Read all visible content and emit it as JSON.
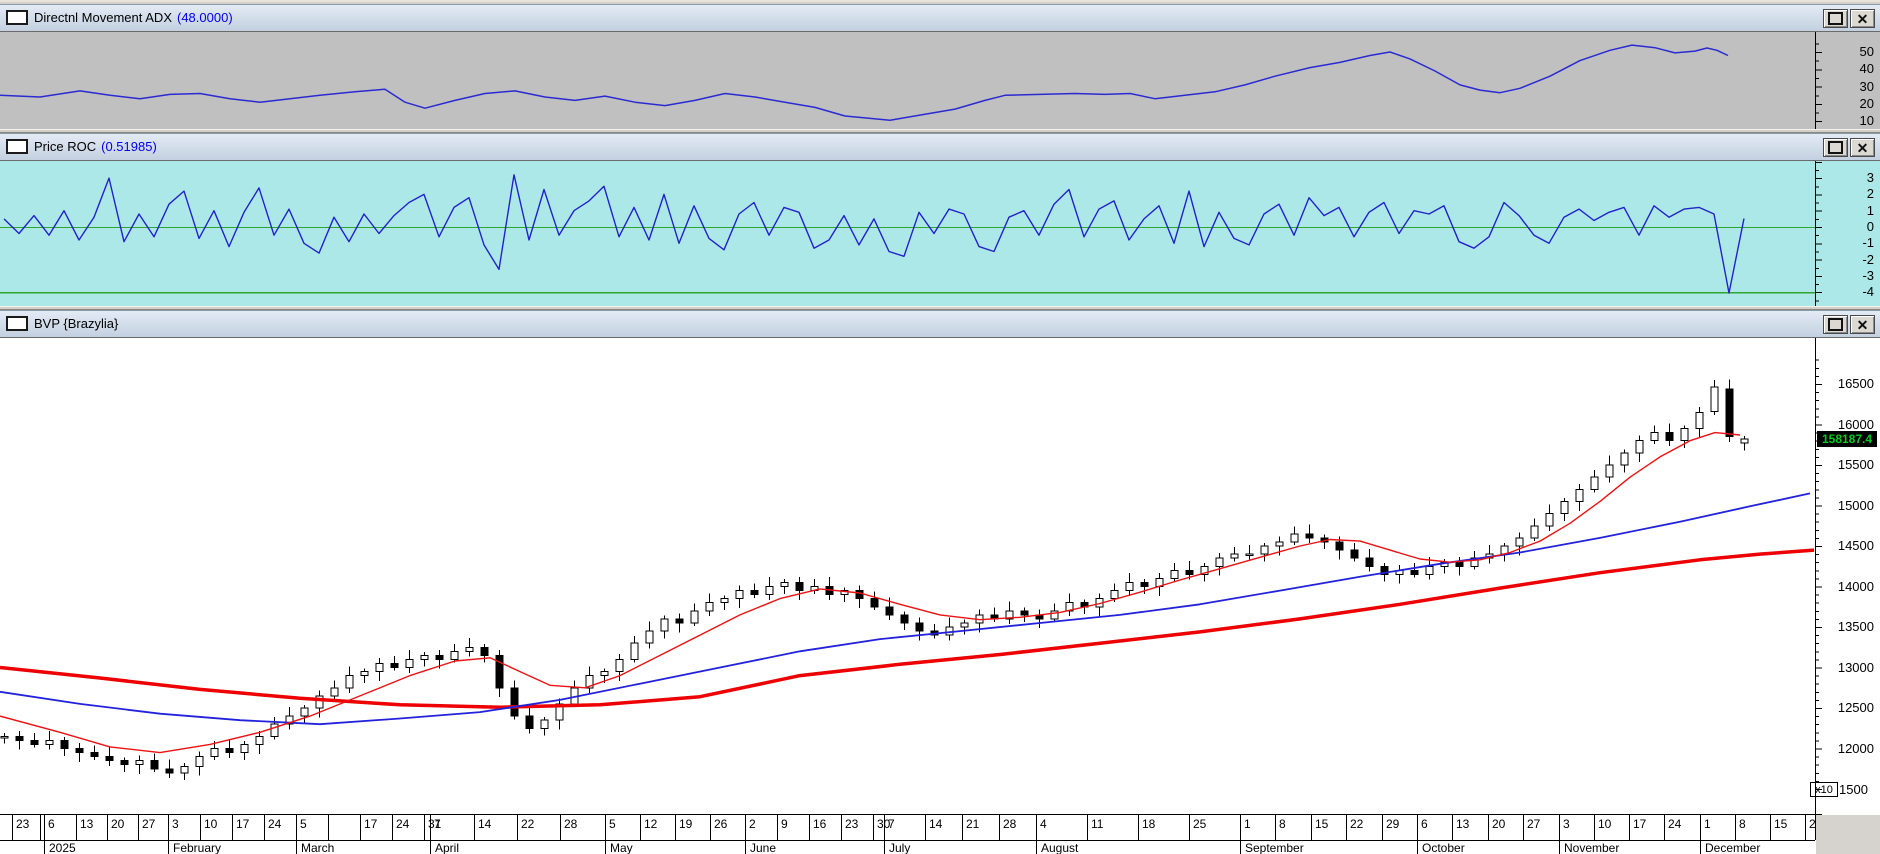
{
  "icons": {
    "close_glyph": "✕"
  },
  "panels": {
    "adx": {
      "title": "Directnl Movement ADX",
      "value": "(48.0000)"
    },
    "roc": {
      "title": "Price ROC",
      "value": "(0.51985)"
    },
    "price": {
      "title": "BVP {Brazylia}"
    }
  },
  "price_axis": {
    "badge": "158187.4",
    "multiplier": "x10",
    "bottom_label": "1500"
  },
  "chart_data": [
    {
      "id": "adx",
      "type": "line",
      "title": "Directnl Movement ADX (48.0000)",
      "line_color": "#2a2ad2",
      "bg": "#c0c0c0",
      "last_value": 48.0,
      "ylim": [
        5,
        55
      ],
      "ytick_labels": [
        50,
        40,
        30,
        20,
        10
      ],
      "legend": "none",
      "grid": false,
      "points": [
        [
          0,
          25
        ],
        [
          40,
          24
        ],
        [
          80,
          27.5
        ],
        [
          110,
          25
        ],
        [
          140,
          23
        ],
        [
          170,
          25.5
        ],
        [
          200,
          26
        ],
        [
          230,
          23
        ],
        [
          260,
          21
        ],
        [
          290,
          23
        ],
        [
          320,
          25
        ],
        [
          355,
          27
        ],
        [
          385,
          28.5
        ],
        [
          405,
          21
        ],
        [
          425,
          17.5
        ],
        [
          455,
          22
        ],
        [
          485,
          26
        ],
        [
          515,
          27.5
        ],
        [
          545,
          24
        ],
        [
          575,
          22
        ],
        [
          605,
          24.5
        ],
        [
          635,
          21
        ],
        [
          665,
          19
        ],
        [
          695,
          22
        ],
        [
          725,
          26
        ],
        [
          755,
          24
        ],
        [
          785,
          21
        ],
        [
          815,
          18
        ],
        [
          845,
          13
        ],
        [
          890,
          10.5
        ],
        [
          925,
          14
        ],
        [
          955,
          17
        ],
        [
          985,
          22
        ],
        [
          1005,
          25
        ],
        [
          1040,
          25.5
        ],
        [
          1075,
          26
        ],
        [
          1105,
          25.5
        ],
        [
          1130,
          26
        ],
        [
          1155,
          23
        ],
        [
          1185,
          25
        ],
        [
          1215,
          27
        ],
        [
          1245,
          31
        ],
        [
          1275,
          36
        ],
        [
          1310,
          41
        ],
        [
          1340,
          44
        ],
        [
          1370,
          48
        ],
        [
          1390,
          50
        ],
        [
          1410,
          46
        ],
        [
          1435,
          39
        ],
        [
          1460,
          31
        ],
        [
          1480,
          28
        ],
        [
          1500,
          26.5
        ],
        [
          1520,
          29
        ],
        [
          1550,
          36
        ],
        [
          1580,
          45
        ],
        [
          1610,
          51
        ],
        [
          1632,
          54
        ],
        [
          1655,
          52.5
        ],
        [
          1675,
          49.5
        ],
        [
          1695,
          50.5
        ],
        [
          1707,
          52.3
        ],
        [
          1717,
          51
        ],
        [
          1728,
          48
        ]
      ]
    },
    {
      "id": "roc",
      "type": "line",
      "title": "Price ROC (0.51985)",
      "line_color": "#2222cc",
      "bg": "#ace8e8",
      "hline_color": "#2fa52f",
      "hlines": [
        0,
        -4
      ],
      "last_value": 0.51985,
      "ylim": [
        -4.9,
        4.1
      ],
      "ytick_labels": [
        3,
        2,
        1,
        0,
        -1,
        -2,
        -3,
        -4
      ],
      "grid": false,
      "x_step": 15,
      "values": [
        0.5,
        -0.4,
        0.7,
        -0.5,
        1.0,
        -0.8,
        0.6,
        3.0,
        -0.9,
        0.8,
        -0.6,
        1.4,
        2.2,
        -0.7,
        1.0,
        -1.2,
        0.9,
        2.4,
        -0.5,
        1.1,
        -1.0,
        -1.6,
        0.6,
        -0.9,
        0.8,
        -0.4,
        0.7,
        1.5,
        2.0,
        -0.6,
        1.2,
        1.8,
        -1.1,
        -2.6,
        3.2,
        -0.8,
        2.3,
        -0.5,
        1.0,
        1.6,
        2.5,
        -0.6,
        1.2,
        -0.8,
        2.0,
        -1.0,
        1.3,
        -0.7,
        -1.4,
        0.8,
        1.5,
        -0.5,
        1.2,
        0.9,
        -1.3,
        -0.8,
        0.7,
        -1.1,
        0.5,
        -1.5,
        -1.8,
        0.9,
        -0.4,
        1.1,
        0.8,
        -1.2,
        -1.5,
        0.6,
        1.0,
        -0.5,
        1.4,
        2.3,
        -0.6,
        1.1,
        1.6,
        -0.8,
        0.5,
        1.3,
        -1.0,
        2.2,
        -1.2,
        0.9,
        -0.7,
        -1.1,
        0.8,
        1.4,
        -0.5,
        1.8,
        0.7,
        1.2,
        -0.6,
        0.9,
        1.5,
        -0.4,
        1.0,
        0.8,
        1.3,
        -0.9,
        -1.3,
        -0.6,
        1.5,
        0.7,
        -0.5,
        -1.0,
        0.6,
        1.1,
        0.4,
        0.9,
        1.2,
        -0.5,
        1.3,
        0.6,
        1.1,
        1.2,
        0.8,
        -4.05,
        0.52
      ]
    },
    {
      "id": "price",
      "type": "candlestick",
      "title": "BVP {Brazylia}",
      "bg": "#ffffff",
      "scale_multiplier": "x10",
      "last_price_label": "158187.4",
      "up_fill": "#ffffff",
      "down_fill": "#000000",
      "outline": "#000000",
      "ytick_labels": [
        16500,
        16000,
        15500,
        15000,
        14500,
        14000,
        13500,
        13000,
        12500,
        12000
      ],
      "bottom_tick_label": "1500",
      "ylim": [
        11450,
        16900
      ],
      "grid": false,
      "x_step": 15,
      "closes": [
        12150,
        12100,
        12050,
        12100,
        12000,
        11950,
        11900,
        11850,
        11800,
        11850,
        11750,
        11700,
        11780,
        11900,
        12000,
        11950,
        12050,
        12150,
        12300,
        12400,
        12500,
        12650,
        12750,
        12900,
        12950,
        13050,
        13000,
        13100,
        13150,
        13100,
        13200,
        13250,
        13150,
        12750,
        12400,
        12250,
        12350,
        12550,
        12750,
        12900,
        12950,
        13100,
        13300,
        13450,
        13600,
        13550,
        13700,
        13800,
        13850,
        13950,
        13900,
        14000,
        14050,
        13950,
        14000,
        13900,
        13950,
        13850,
        13750,
        13650,
        13550,
        13450,
        13400,
        13500,
        13550,
        13650,
        13600,
        13700,
        13650,
        13600,
        13700,
        13800,
        13750,
        13850,
        13950,
        14050,
        14000,
        14100,
        14200,
        14150,
        14250,
        14350,
        14400,
        14400,
        14500,
        14550,
        14650,
        14600,
        14550,
        14450,
        14350,
        14250,
        14150,
        14200,
        14150,
        14250,
        14300,
        14250,
        14350,
        14400,
        14500,
        14600,
        14750,
        14900,
        15050,
        15200,
        15350,
        15500,
        15650,
        15800,
        15900,
        15800,
        15950,
        16150,
        [
          16160,
          16460
        ],
        [
          16440,
          15850
        ],
        [
          15770,
          15818.7
        ]
      ],
      "moving_averages": [
        {
          "name": "slow-ma",
          "color": "#ee0000",
          "width": 3.5,
          "points": [
            [
              0,
              13000
            ],
            [
              100,
              12870
            ],
            [
              200,
              12730
            ],
            [
              300,
              12620
            ],
            [
              400,
              12540
            ],
            [
              500,
              12510
            ],
            [
              600,
              12540
            ],
            [
              700,
              12640
            ],
            [
              800,
              12900
            ],
            [
              900,
              13040
            ],
            [
              1000,
              13160
            ],
            [
              1100,
              13300
            ],
            [
              1200,
              13440
            ],
            [
              1300,
              13600
            ],
            [
              1400,
              13780
            ],
            [
              1500,
              13980
            ],
            [
              1600,
              14170
            ],
            [
              1700,
              14330
            ],
            [
              1760,
              14400
            ],
            [
              1814,
              14450
            ]
          ]
        },
        {
          "name": "mid-ma",
          "color": "#2222dd",
          "width": 1.8,
          "points": [
            [
              0,
              12700
            ],
            [
              80,
              12550
            ],
            [
              160,
              12430
            ],
            [
              240,
              12350
            ],
            [
              320,
              12300
            ],
            [
              400,
              12370
            ],
            [
              480,
              12450
            ],
            [
              560,
              12600
            ],
            [
              640,
              12800
            ],
            [
              720,
              13000
            ],
            [
              800,
              13200
            ],
            [
              880,
              13350
            ],
            [
              960,
              13450
            ],
            [
              1040,
              13550
            ],
            [
              1120,
              13650
            ],
            [
              1200,
              13780
            ],
            [
              1280,
              13950
            ],
            [
              1360,
              14120
            ],
            [
              1440,
              14280
            ],
            [
              1520,
              14420
            ],
            [
              1600,
              14600
            ],
            [
              1680,
              14800
            ],
            [
              1750,
              14990
            ],
            [
              1810,
              15150
            ]
          ]
        },
        {
          "name": "fast-ma",
          "color": "#ee1111",
          "width": 1.4,
          "points": [
            [
              0,
              12400
            ],
            [
              60,
              12200
            ],
            [
              110,
              12020
            ],
            [
              160,
              11950
            ],
            [
              210,
              12050
            ],
            [
              260,
              12200
            ],
            [
              310,
              12400
            ],
            [
              360,
              12650
            ],
            [
              410,
              12900
            ],
            [
              455,
              13080
            ],
            [
              490,
              13120
            ],
            [
              520,
              12950
            ],
            [
              550,
              12780
            ],
            [
              585,
              12750
            ],
            [
              620,
              12900
            ],
            [
              660,
              13150
            ],
            [
              700,
              13400
            ],
            [
              740,
              13650
            ],
            [
              780,
              13850
            ],
            [
              820,
              13970
            ],
            [
              860,
              13920
            ],
            [
              900,
              13780
            ],
            [
              940,
              13650
            ],
            [
              980,
              13590
            ],
            [
              1020,
              13620
            ],
            [
              1060,
              13680
            ],
            [
              1100,
              13790
            ],
            [
              1140,
              13930
            ],
            [
              1180,
              14080
            ],
            [
              1220,
              14220
            ],
            [
              1260,
              14360
            ],
            [
              1300,
              14500
            ],
            [
              1330,
              14580
            ],
            [
              1360,
              14560
            ],
            [
              1390,
              14450
            ],
            [
              1420,
              14340
            ],
            [
              1450,
              14300
            ],
            [
              1480,
              14330
            ],
            [
              1510,
              14420
            ],
            [
              1540,
              14560
            ],
            [
              1570,
              14780
            ],
            [
              1600,
              15050
            ],
            [
              1630,
              15350
            ],
            [
              1660,
              15600
            ],
            [
              1690,
              15800
            ],
            [
              1715,
              15900
            ],
            [
              1740,
              15870
            ]
          ]
        }
      ],
      "xaxis": {
        "weeks": [
          [
            12,
            "23"
          ],
          [
            40,
            ""
          ],
          [
            44,
            "6"
          ],
          [
            76,
            "13"
          ],
          [
            107,
            "20"
          ],
          [
            138,
            "27"
          ],
          [
            168,
            "3"
          ],
          [
            200,
            "10"
          ],
          [
            232,
            "17"
          ],
          [
            264,
            "24"
          ],
          [
            296,
            "5"
          ],
          [
            328,
            ""
          ],
          [
            360,
            "17"
          ],
          [
            392,
            "24"
          ],
          [
            424,
            "31"
          ],
          [
            430,
            "7"
          ],
          [
            474,
            "14"
          ],
          [
            517,
            "22"
          ],
          [
            560,
            "28"
          ],
          [
            605,
            "5"
          ],
          [
            640,
            "12"
          ],
          [
            675,
            "19"
          ],
          [
            710,
            "26"
          ],
          [
            745,
            "2"
          ],
          [
            777,
            "9"
          ],
          [
            809,
            "16"
          ],
          [
            841,
            "23"
          ],
          [
            873,
            "30"
          ],
          [
            884,
            "7"
          ],
          [
            925,
            "14"
          ],
          [
            962,
            "21"
          ],
          [
            999,
            "28"
          ],
          [
            1036,
            "4"
          ],
          [
            1087,
            "11"
          ],
          [
            1138,
            "18"
          ],
          [
            1189,
            "25"
          ],
          [
            1240,
            "1"
          ],
          [
            1275,
            "8"
          ],
          [
            1311,
            "15"
          ],
          [
            1346,
            "22"
          ],
          [
            1382,
            "29"
          ],
          [
            1417,
            "6"
          ],
          [
            1452,
            "13"
          ],
          [
            1488,
            "20"
          ],
          [
            1523,
            "27"
          ],
          [
            1559,
            "3"
          ],
          [
            1594,
            "10"
          ],
          [
            1629,
            "17"
          ],
          [
            1664,
            "24"
          ],
          [
            1700,
            "1"
          ],
          [
            1735,
            "8"
          ],
          [
            1770,
            "15"
          ],
          [
            1805,
            "2"
          ]
        ],
        "months": [
          [
            44,
            "2025"
          ],
          [
            168,
            "February"
          ],
          [
            296,
            "March"
          ],
          [
            430,
            "April"
          ],
          [
            605,
            "May"
          ],
          [
            745,
            "June"
          ],
          [
            884,
            "July"
          ],
          [
            1036,
            "August"
          ],
          [
            1240,
            "September"
          ],
          [
            1417,
            "October"
          ],
          [
            1559,
            "November"
          ],
          [
            1700,
            "December"
          ]
        ]
      }
    }
  ]
}
